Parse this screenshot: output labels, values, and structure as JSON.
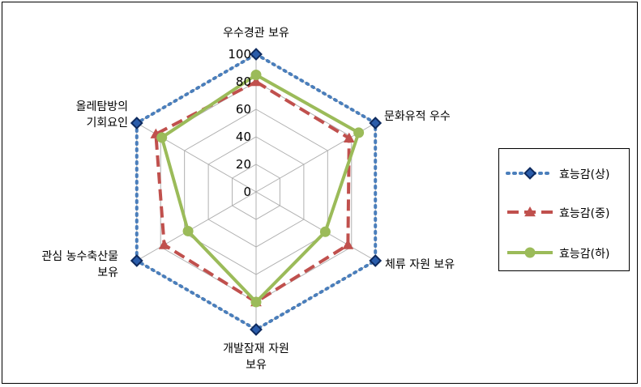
{
  "chart_data": {
    "type": "radar",
    "axes": [
      [
        "우수경관 보유"
      ],
      [
        "문화유적 우수"
      ],
      [
        "체류 자원 보유"
      ],
      [
        "개발잠재 자원",
        "보유"
      ],
      [
        "관심 농수축산물",
        "보유"
      ],
      [
        "올레탐방의",
        "기회요인"
      ]
    ],
    "rlim": [
      0,
      100
    ],
    "ticks": [
      "0",
      "20",
      "40",
      "60",
      "80",
      "100"
    ],
    "grid": true,
    "legend_position": "right",
    "series": [
      {
        "name": "효능감(상)",
        "values": [
          100,
          100,
          100,
          100,
          100,
          100
        ],
        "color": "#4a7ebb",
        "marker": "diamond",
        "line": "dotted"
      },
      {
        "name": "효능감(중)",
        "values": [
          80,
          78,
          77,
          80,
          77,
          84
        ],
        "color": "#c0504d",
        "marker": "triangle",
        "line": "dashed"
      },
      {
        "name": "효능감(하)",
        "values": [
          85,
          86,
          58,
          80,
          57,
          79
        ],
        "color": "#9bbb59",
        "marker": "circle",
        "line": "solid"
      }
    ]
  }
}
